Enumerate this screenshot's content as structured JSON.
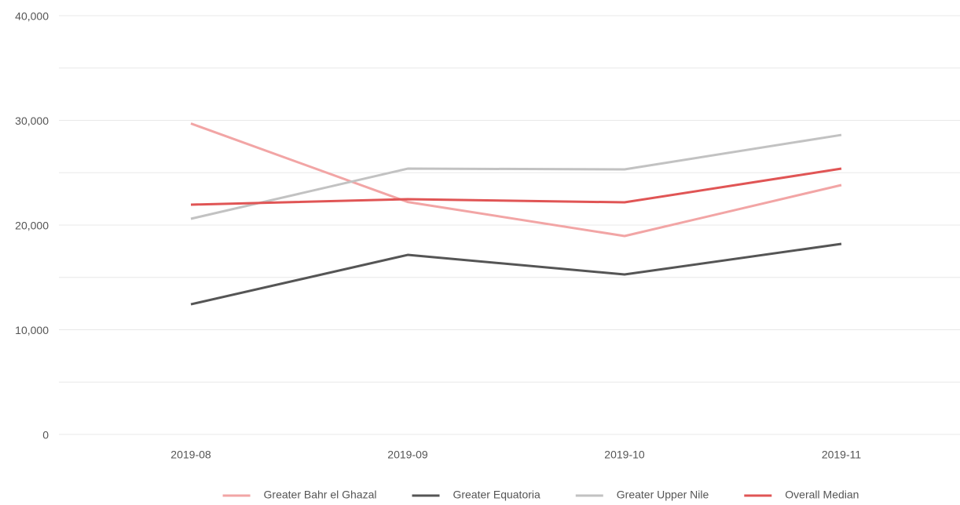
{
  "chart_data": {
    "type": "line",
    "categories": [
      "2019-08",
      "2019-09",
      "2019-10",
      "2019-11"
    ],
    "series": [
      {
        "name": "Greater Bahr el Ghazal",
        "color": "#f2a5a5",
        "values": [
          29700,
          22200,
          18950,
          23820
        ]
      },
      {
        "name": "Greater Equatoria",
        "color": "#555555",
        "values": [
          12430,
          17150,
          15280,
          18200
        ]
      },
      {
        "name": "Greater Upper Nile",
        "color": "#c2c2c2",
        "values": [
          20600,
          25390,
          25320,
          28610
        ]
      },
      {
        "name": "Overall Median",
        "color": "#e05555",
        "values": [
          21950,
          22470,
          22170,
          25390
        ]
      }
    ],
    "ylim": [
      0,
      40000
    ],
    "yticks": [
      {
        "value": 0,
        "label": "0"
      },
      {
        "value": 10000,
        "label": "10,000"
      },
      {
        "value": 20000,
        "label": "20,000"
      },
      {
        "value": 30000,
        "label": "30,000"
      },
      {
        "value": 40000,
        "label": "40,000"
      }
    ],
    "minor_yticks": [
      5000,
      15000,
      25000,
      35000
    ],
    "grid": true,
    "legend": "bottom"
  }
}
